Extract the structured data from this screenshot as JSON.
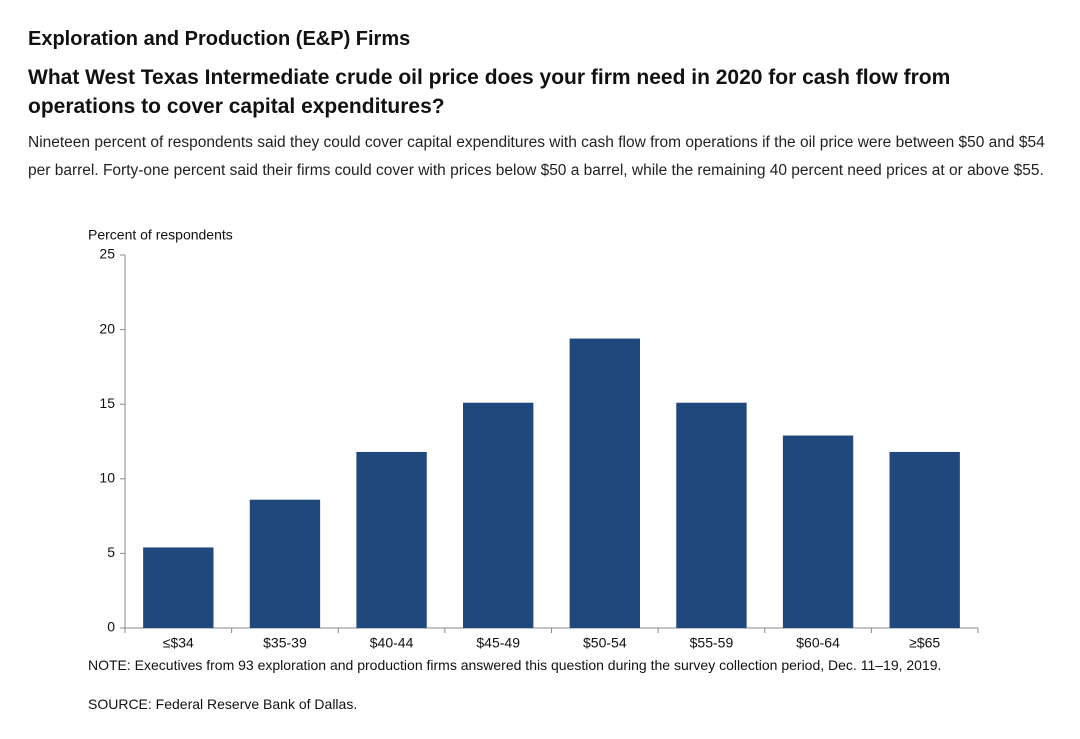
{
  "chart_data": {
    "type": "bar",
    "title": "Exploration and Production (E&P) Firms",
    "subtitle": "What West Texas Intermediate crude oil price does your firm need in 2020 for cash flow from operations to cover capital expenditures?",
    "description": "Nineteen percent of respondents said they could cover capital expenditures with cash flow from operations if the oil price were between $50 and $54 per barrel. Forty-one percent said their firms could cover with prices below $50 a barrel, while the remaining 40 percent need prices at or above $55.",
    "y_label": "Percent of respondents",
    "categories": [
      "≤$34",
      "$35-39",
      "$40-44",
      "$45-49",
      "$50-54",
      "$55-59",
      "$60-64",
      "≥$65"
    ],
    "values": [
      5.4,
      8.6,
      11.8,
      15.1,
      19.4,
      15.1,
      12.9,
      11.8
    ],
    "color": "#1f497d",
    "ylim": [
      0,
      25
    ],
    "yticks": [
      0,
      5,
      10,
      15,
      20,
      25
    ],
    "grid": false,
    "note": "NOTE: Executives from 93 exploration and production firms answered this question during the survey collection period, Dec. 11–19, 2019.",
    "source": "SOURCE: Federal Reserve Bank of Dallas."
  }
}
